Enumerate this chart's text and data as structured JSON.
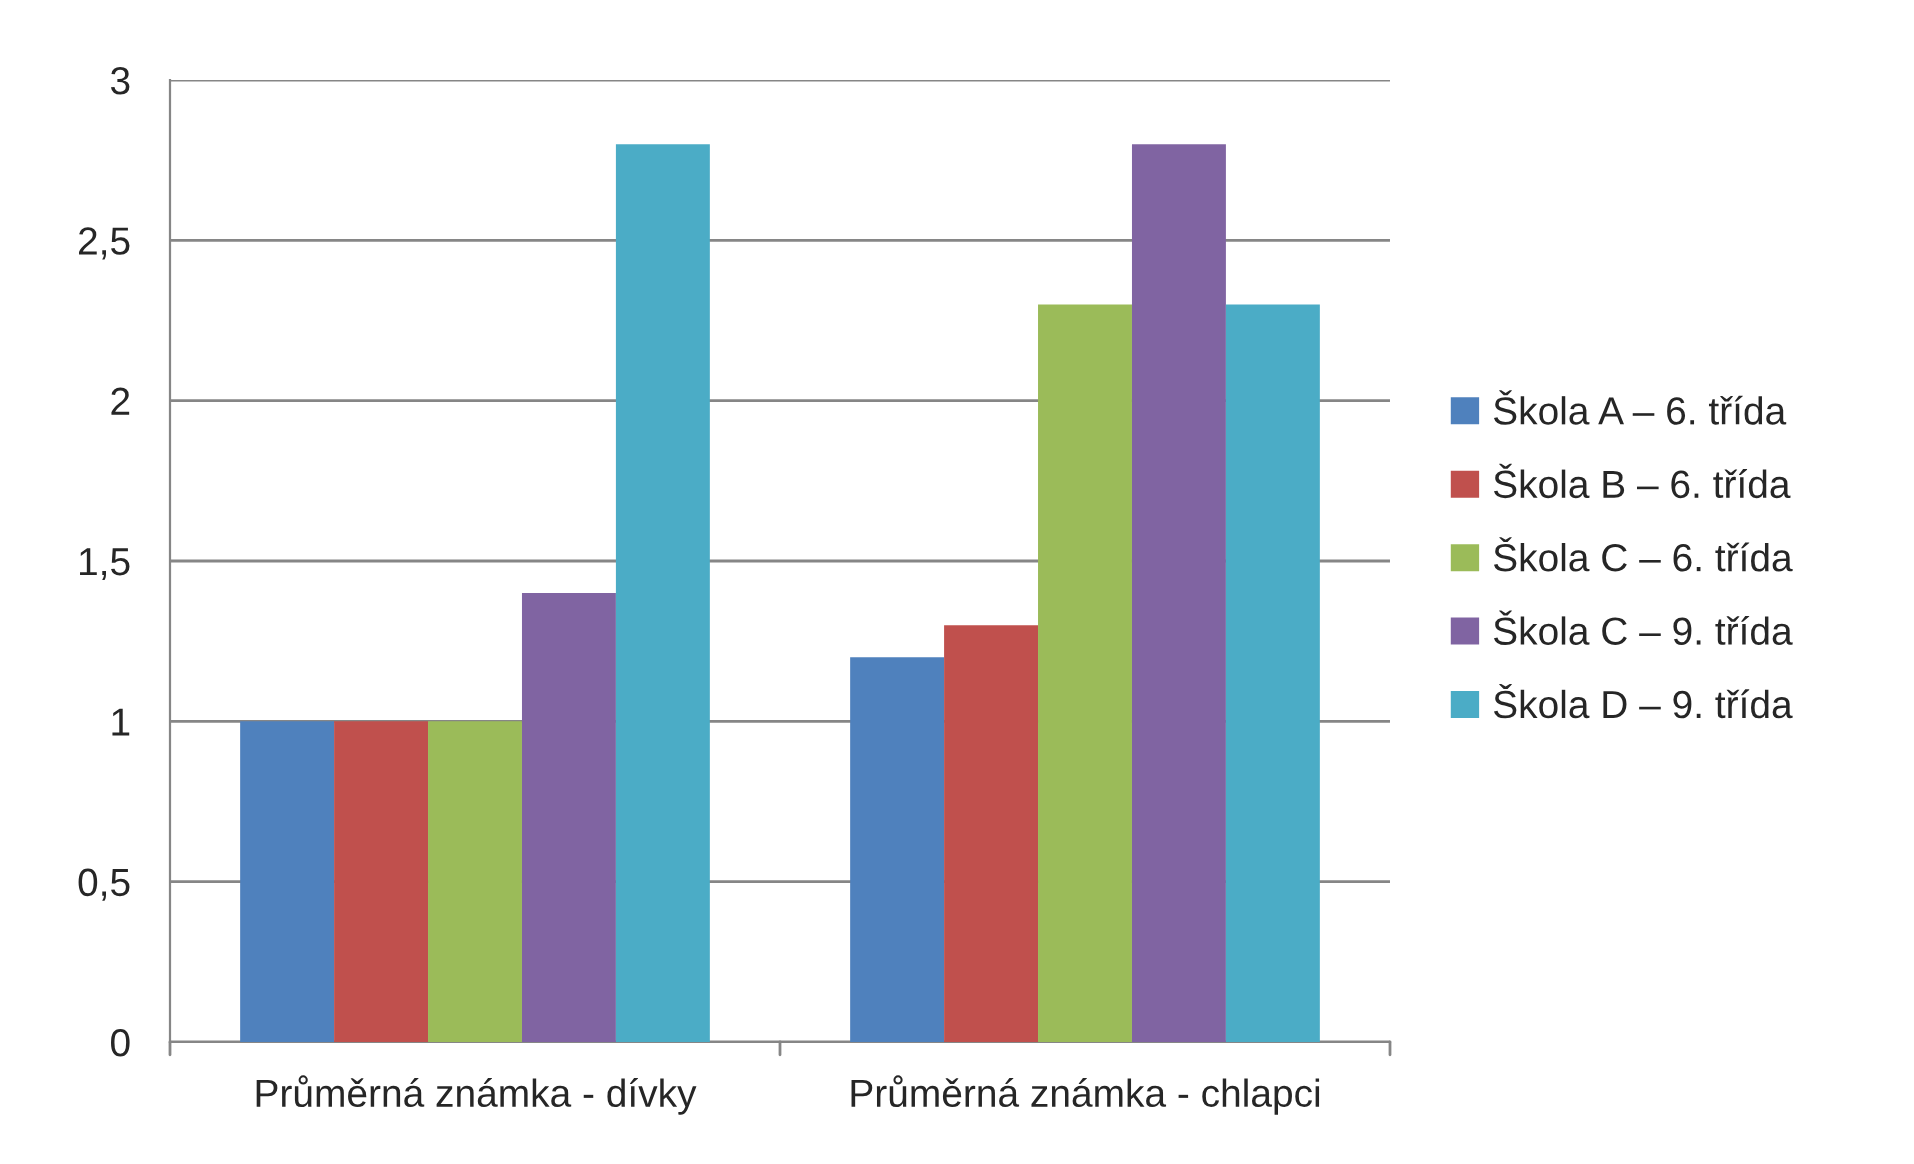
{
  "chart_data": {
    "type": "bar",
    "categories": [
      "Průměrná známka - dívky",
      "Průměrná známka - chlapci"
    ],
    "series": [
      {
        "name": "Škola A – 6. třída",
        "color": "#4f81bd",
        "values": [
          1,
          1.2
        ]
      },
      {
        "name": "Škola B – 6. třída",
        "color": "#c0504d",
        "values": [
          1,
          1.3
        ]
      },
      {
        "name": "Škola C – 6. třída",
        "color": "#9bbb59",
        "values": [
          1,
          2.3
        ]
      },
      {
        "name": "Škola C – 9. třída",
        "color": "#8064a2",
        "values": [
          1.4,
          2.8
        ]
      },
      {
        "name": "Škola D – 9. třída",
        "color": "#4bacc6",
        "values": [
          2.8,
          2.3
        ]
      }
    ],
    "ylim": [
      0,
      3
    ],
    "yticks": [
      0,
      {
        "value": 0.5,
        "label": "0,5"
      },
      1,
      {
        "value": 1.5,
        "label": "1,5"
      },
      2,
      {
        "value": 2.5,
        "label": "2,5"
      },
      3
    ],
    "grid": "y",
    "legend": "right"
  }
}
